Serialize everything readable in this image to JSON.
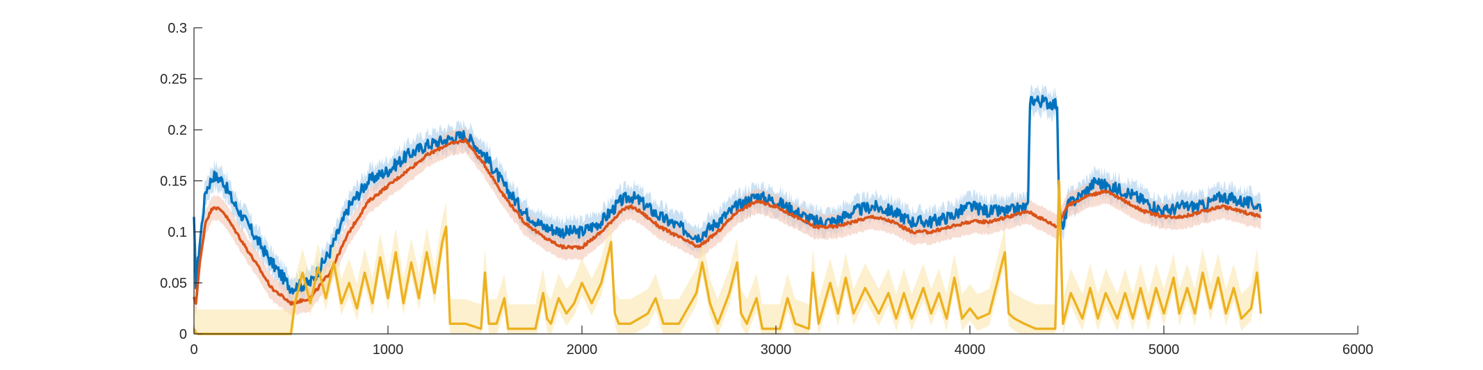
{
  "chart_data": {
    "type": "line",
    "title": "",
    "xlabel": "",
    "ylabel": "",
    "xlim": [
      0,
      6000
    ],
    "ylim": [
      0,
      0.3
    ],
    "x_ticks": [
      0,
      1000,
      2000,
      3000,
      4000,
      5000,
      6000
    ],
    "x_tick_labels": [
      "0",
      "1000",
      "2000",
      "3000",
      "4000",
      "5000",
      "6000"
    ],
    "y_ticks": [
      0,
      0.05,
      0.1,
      0.15,
      0.2,
      0.25,
      0.3
    ],
    "y_tick_labels": [
      "0",
      "0.05",
      "0.1",
      "0.15",
      "0.2",
      "0.25",
      "0.3"
    ],
    "grid": false,
    "legend": "none",
    "series": [
      {
        "color": "#0072BD",
        "band_color": "#A9CDEB",
        "noise": 0.006,
        "x": [
          0,
          10,
          30,
          60,
          100,
          150,
          200,
          300,
          400,
          500,
          600,
          700,
          800,
          900,
          1000,
          1100,
          1200,
          1300,
          1400,
          1500,
          1600,
          1700,
          1800,
          1900,
          2000,
          2100,
          2200,
          2250,
          2300,
          2400,
          2500,
          2600,
          2700,
          2800,
          2900,
          3000,
          3100,
          3200,
          3300,
          3400,
          3500,
          3600,
          3700,
          3800,
          3900,
          4000,
          4100,
          4200,
          4300,
          4310,
          4450,
          4460,
          4480,
          4500,
          4600,
          4650,
          4700,
          4800,
          4900,
          5000,
          5100,
          5200,
          5300,
          5400,
          5500
        ],
        "y": [
          0.11,
          0.05,
          0.09,
          0.14,
          0.155,
          0.15,
          0.13,
          0.1,
          0.07,
          0.045,
          0.05,
          0.08,
          0.125,
          0.15,
          0.16,
          0.175,
          0.185,
          0.19,
          0.195,
          0.175,
          0.145,
          0.12,
          0.105,
          0.1,
          0.1,
          0.11,
          0.13,
          0.135,
          0.13,
          0.115,
          0.105,
          0.095,
          0.11,
          0.125,
          0.135,
          0.13,
          0.12,
          0.11,
          0.11,
          0.12,
          0.125,
          0.12,
          0.11,
          0.11,
          0.115,
          0.125,
          0.12,
          0.12,
          0.125,
          0.23,
          0.225,
          0.125,
          0.1,
          0.125,
          0.14,
          0.15,
          0.145,
          0.14,
          0.13,
          0.12,
          0.125,
          0.125,
          0.135,
          0.13,
          0.125
        ]
      },
      {
        "color": "#D95319",
        "band_color": "#F4C7B6",
        "noise": 0.0015,
        "x": [
          0,
          10,
          30,
          60,
          100,
          150,
          200,
          300,
          400,
          500,
          600,
          700,
          800,
          900,
          1000,
          1100,
          1200,
          1300,
          1400,
          1500,
          1600,
          1700,
          1800,
          1900,
          2000,
          2100,
          2200,
          2250,
          2300,
          2400,
          2500,
          2600,
          2700,
          2800,
          2900,
          3000,
          3100,
          3200,
          3300,
          3400,
          3500,
          3600,
          3700,
          3800,
          3900,
          4000,
          4100,
          4200,
          4300,
          4400,
          4450,
          4500,
          4600,
          4700,
          4800,
          4900,
          5000,
          5100,
          5200,
          5300,
          5400,
          5500
        ],
        "y": [
          0.035,
          0.03,
          0.07,
          0.11,
          0.125,
          0.12,
          0.105,
          0.075,
          0.045,
          0.03,
          0.035,
          0.06,
          0.1,
          0.13,
          0.145,
          0.16,
          0.175,
          0.185,
          0.19,
          0.165,
          0.135,
          0.11,
          0.095,
          0.085,
          0.085,
          0.1,
          0.12,
          0.125,
          0.12,
          0.105,
          0.095,
          0.085,
          0.1,
          0.12,
          0.13,
          0.125,
          0.115,
          0.105,
          0.105,
          0.11,
          0.115,
          0.11,
          0.1,
          0.1,
          0.105,
          0.11,
          0.11,
          0.115,
          0.12,
          0.11,
          0.105,
          0.125,
          0.135,
          0.14,
          0.13,
          0.12,
          0.115,
          0.115,
          0.12,
          0.125,
          0.12,
          0.115
        ]
      },
      {
        "color": "#EDB120",
        "band_color": "#F9E3A6",
        "noise": 0,
        "x": [
          0,
          10,
          20,
          500,
          520,
          560,
          600,
          640,
          680,
          720,
          760,
          800,
          840,
          880,
          920,
          960,
          1000,
          1040,
          1080,
          1120,
          1160,
          1200,
          1240,
          1280,
          1300,
          1320,
          1340,
          1400,
          1480,
          1500,
          1520,
          1560,
          1600,
          1620,
          1650,
          1700,
          1760,
          1800,
          1820,
          1840,
          1880,
          1920,
          1960,
          2000,
          2050,
          2100,
          2150,
          2170,
          2190,
          2250,
          2340,
          2380,
          2420,
          2500,
          2590,
          2620,
          2660,
          2700,
          2760,
          2800,
          2820,
          2850,
          2900,
          2930,
          2960,
          3020,
          3060,
          3100,
          3170,
          3190,
          3220,
          3280,
          3320,
          3360,
          3400,
          3460,
          3530,
          3580,
          3620,
          3660,
          3700,
          3760,
          3800,
          3840,
          3880,
          3920,
          3960,
          4000,
          4040,
          4100,
          4180,
          4200,
          4230,
          4280,
          4340,
          4380,
          4400,
          4420,
          4440,
          4460,
          4480,
          4520,
          4580,
          4620,
          4660,
          4700,
          4760,
          4800,
          4840,
          4880,
          4920,
          4960,
          5000,
          5050,
          5080,
          5120,
          5160,
          5200,
          5240,
          5280,
          5320,
          5360,
          5400,
          5450,
          5480,
          5500
        ],
        "y": [
          0.005,
          0.001,
          0,
          0,
          0.03,
          0.06,
          0.03,
          0.065,
          0.035,
          0.07,
          0.03,
          0.05,
          0.025,
          0.06,
          0.03,
          0.075,
          0.035,
          0.08,
          0.03,
          0.07,
          0.035,
          0.08,
          0.04,
          0.09,
          0.105,
          0.01,
          0.01,
          0.01,
          0.005,
          0.06,
          0.01,
          0.01,
          0.035,
          0.005,
          0.005,
          0.005,
          0.005,
          0.04,
          0.015,
          0.01,
          0.035,
          0.02,
          0.03,
          0.05,
          0.03,
          0.05,
          0.09,
          0.02,
          0.01,
          0.01,
          0.02,
          0.035,
          0.01,
          0.01,
          0.04,
          0.07,
          0.03,
          0.01,
          0.04,
          0.07,
          0.02,
          0.01,
          0.035,
          0.005,
          0.005,
          0.005,
          0.035,
          0.01,
          0.005,
          0.06,
          0.01,
          0.05,
          0.02,
          0.055,
          0.02,
          0.045,
          0.02,
          0.04,
          0.015,
          0.04,
          0.015,
          0.045,
          0.02,
          0.04,
          0.015,
          0.055,
          0.015,
          0.025,
          0.015,
          0.02,
          0.08,
          0.02,
          0.015,
          0.01,
          0.005,
          0.005,
          0.005,
          0.005,
          0.005,
          0.15,
          0.01,
          0.04,
          0.015,
          0.045,
          0.015,
          0.04,
          0.015,
          0.04,
          0.015,
          0.045,
          0.015,
          0.045,
          0.02,
          0.055,
          0.02,
          0.045,
          0.02,
          0.06,
          0.025,
          0.055,
          0.02,
          0.045,
          0.015,
          0.025,
          0.06,
          0.02
        ]
      }
    ]
  }
}
